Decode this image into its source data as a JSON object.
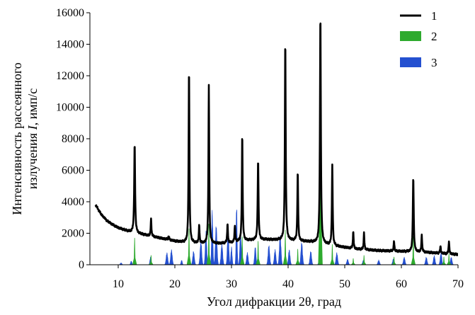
{
  "chart_data": {
    "type": "line",
    "xlabel": "Угол дифракции 2θ, град",
    "ylabel_line1": "Интенсивность рассеянного",
    "ylabel_line2_prefix": "излучения ",
    "ylabel_symbol": "I",
    "ylabel_line2_suffix": ", имп/с",
    "xlim": [
      5,
      70
    ],
    "ylim": [
      0,
      16000
    ],
    "x_ticks": [
      "10",
      "20",
      "30",
      "40",
      "50",
      "60",
      "70"
    ],
    "y_ticks": [
      "0",
      "2000",
      "4000",
      "6000",
      "8000",
      "10000",
      "12000",
      "14000",
      "16000"
    ],
    "legend_position": "top-right",
    "legend": [
      "1",
      "2",
      "3"
    ],
    "series": [
      {
        "name": "1",
        "style": "line",
        "color": "#000000",
        "baseline": [
          [
            6,
            3800
          ],
          [
            7,
            3200
          ],
          [
            8,
            2800
          ],
          [
            9,
            2550
          ],
          [
            10,
            2350
          ],
          [
            12,
            2100
          ],
          [
            14,
            1950
          ],
          [
            16,
            1800
          ],
          [
            18,
            1650
          ],
          [
            20,
            1500
          ],
          [
            22,
            1400
          ],
          [
            25,
            1350
          ],
          [
            28,
            1350
          ],
          [
            30,
            1400
          ],
          [
            33,
            1550
          ],
          [
            36,
            1600
          ],
          [
            40,
            1550
          ],
          [
            44,
            1450
          ],
          [
            48,
            1200
          ],
          [
            52,
            1000
          ],
          [
            56,
            900
          ],
          [
            60,
            850
          ],
          [
            64,
            800
          ],
          [
            68,
            700
          ],
          [
            70,
            650
          ]
        ],
        "peaks": [
          {
            "x": 12.9,
            "y": 7700,
            "w": 0.18
          },
          {
            "x": 15.8,
            "y": 2900,
            "w": 0.15
          },
          {
            "x": 18.9,
            "y": 1800,
            "w": 0.2
          },
          {
            "x": 22.5,
            "y": 12600,
            "w": 0.16
          },
          {
            "x": 24.3,
            "y": 2500,
            "w": 0.15
          },
          {
            "x": 26.0,
            "y": 11400,
            "w": 0.16
          },
          {
            "x": 29.3,
            "y": 2600,
            "w": 0.15
          },
          {
            "x": 30.6,
            "y": 2500,
            "w": 0.15
          },
          {
            "x": 31.9,
            "y": 8300,
            "w": 0.16
          },
          {
            "x": 34.7,
            "y": 6700,
            "w": 0.17
          },
          {
            "x": 39.5,
            "y": 14300,
            "w": 0.17
          },
          {
            "x": 41.7,
            "y": 5900,
            "w": 0.16
          },
          {
            "x": 45.7,
            "y": 16000,
            "w": 0.18
          },
          {
            "x": 47.8,
            "y": 6300,
            "w": 0.16
          },
          {
            "x": 51.5,
            "y": 2100,
            "w": 0.15
          },
          {
            "x": 53.4,
            "y": 2000,
            "w": 0.15
          },
          {
            "x": 58.7,
            "y": 1500,
            "w": 0.15
          },
          {
            "x": 62.1,
            "y": 5600,
            "w": 0.18
          },
          {
            "x": 63.6,
            "y": 1900,
            "w": 0.15
          },
          {
            "x": 66.9,
            "y": 1200,
            "w": 0.15
          },
          {
            "x": 68.4,
            "y": 1500,
            "w": 0.15
          }
        ]
      },
      {
        "name": "2",
        "style": "sticks",
        "color": "#2eaa2e",
        "peaks": [
          {
            "x": 12.9,
            "y": 1700
          },
          {
            "x": 15.8,
            "y": 600
          },
          {
            "x": 22.5,
            "y": 2300
          },
          {
            "x": 26.0,
            "y": 2600
          },
          {
            "x": 31.9,
            "y": 1800
          },
          {
            "x": 34.7,
            "y": 1500
          },
          {
            "x": 39.5,
            "y": 2200
          },
          {
            "x": 41.7,
            "y": 1000
          },
          {
            "x": 45.7,
            "y": 15000
          },
          {
            "x": 47.8,
            "y": 1300
          },
          {
            "x": 51.5,
            "y": 400
          },
          {
            "x": 53.4,
            "y": 600
          },
          {
            "x": 58.7,
            "y": 500
          },
          {
            "x": 62.1,
            "y": 1800
          },
          {
            "x": 67.5,
            "y": 500
          },
          {
            "x": 68.4,
            "y": 700
          }
        ]
      },
      {
        "name": "3",
        "style": "area",
        "color": "#2450d0",
        "peaks": [
          {
            "x": 10.5,
            "y": 120,
            "w": 0.4
          },
          {
            "x": 12.3,
            "y": 250,
            "w": 0.3
          },
          {
            "x": 15.7,
            "y": 500,
            "w": 0.3
          },
          {
            "x": 18.6,
            "y": 800,
            "w": 0.4
          },
          {
            "x": 19.4,
            "y": 1000,
            "w": 0.4
          },
          {
            "x": 21.2,
            "y": 300,
            "w": 0.3
          },
          {
            "x": 23.3,
            "y": 900,
            "w": 0.4
          },
          {
            "x": 24.6,
            "y": 1600,
            "w": 0.4
          },
          {
            "x": 25.5,
            "y": 2200,
            "w": 0.35
          },
          {
            "x": 26.6,
            "y": 3600,
            "w": 0.3
          },
          {
            "x": 27.3,
            "y": 2600,
            "w": 0.4
          },
          {
            "x": 28.3,
            "y": 1400,
            "w": 0.4
          },
          {
            "x": 29.4,
            "y": 2500,
            "w": 0.35
          },
          {
            "x": 30.0,
            "y": 1200,
            "w": 0.3
          },
          {
            "x": 30.9,
            "y": 4100,
            "w": 0.25
          },
          {
            "x": 31.6,
            "y": 2200,
            "w": 0.35
          },
          {
            "x": 32.8,
            "y": 800,
            "w": 0.4
          },
          {
            "x": 34.2,
            "y": 1200,
            "w": 0.35
          },
          {
            "x": 36.6,
            "y": 1300,
            "w": 0.4
          },
          {
            "x": 37.7,
            "y": 1000,
            "w": 0.4
          },
          {
            "x": 38.6,
            "y": 2000,
            "w": 0.4
          },
          {
            "x": 40.2,
            "y": 1000,
            "w": 0.4
          },
          {
            "x": 42.4,
            "y": 1500,
            "w": 0.4
          },
          {
            "x": 44.0,
            "y": 900,
            "w": 0.4
          },
          {
            "x": 45.6,
            "y": 700,
            "w": 0.4
          },
          {
            "x": 48.6,
            "y": 800,
            "w": 0.4
          },
          {
            "x": 50.5,
            "y": 350,
            "w": 0.4
          },
          {
            "x": 53.3,
            "y": 300,
            "w": 0.4
          },
          {
            "x": 56.0,
            "y": 300,
            "w": 0.4
          },
          {
            "x": 58.6,
            "y": 400,
            "w": 0.4
          },
          {
            "x": 60.5,
            "y": 500,
            "w": 0.4
          },
          {
            "x": 62.1,
            "y": 400,
            "w": 0.4
          },
          {
            "x": 64.4,
            "y": 500,
            "w": 0.4
          },
          {
            "x": 65.8,
            "y": 600,
            "w": 0.4
          },
          {
            "x": 67.0,
            "y": 800,
            "w": 0.4
          },
          {
            "x": 68.8,
            "y": 500,
            "w": 0.4
          }
        ]
      }
    ]
  }
}
